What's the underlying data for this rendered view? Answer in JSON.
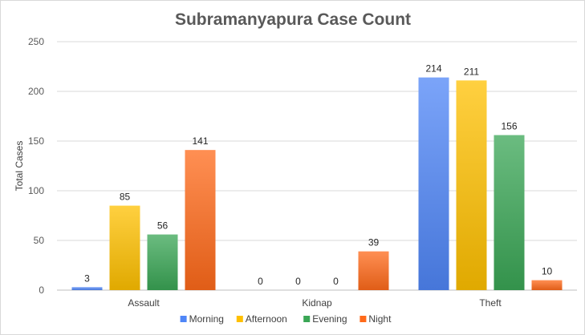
{
  "chart_data": {
    "type": "bar",
    "title": "Subramanyapura Case Count",
    "ylabel": "Total Cases",
    "xlabel": "",
    "categories": [
      "Assault",
      "Kidnap",
      "Theft"
    ],
    "series": [
      {
        "name": "Morning",
        "color": "#4f86f7",
        "values": [
          3,
          0,
          214
        ]
      },
      {
        "name": "Afternoon",
        "color": "#ffc000",
        "values": [
          85,
          0,
          211
        ]
      },
      {
        "name": "Evening",
        "color": "#3aa655",
        "values": [
          56,
          0,
          156
        ]
      },
      {
        "name": "Night",
        "color": "#ff6a1a",
        "values": [
          141,
          39,
          10
        ]
      }
    ],
    "ylim": [
      0,
      250
    ],
    "yticks": [
      0,
      50,
      100,
      150,
      200,
      250
    ],
    "grid": true,
    "legend_position": "bottom"
  }
}
